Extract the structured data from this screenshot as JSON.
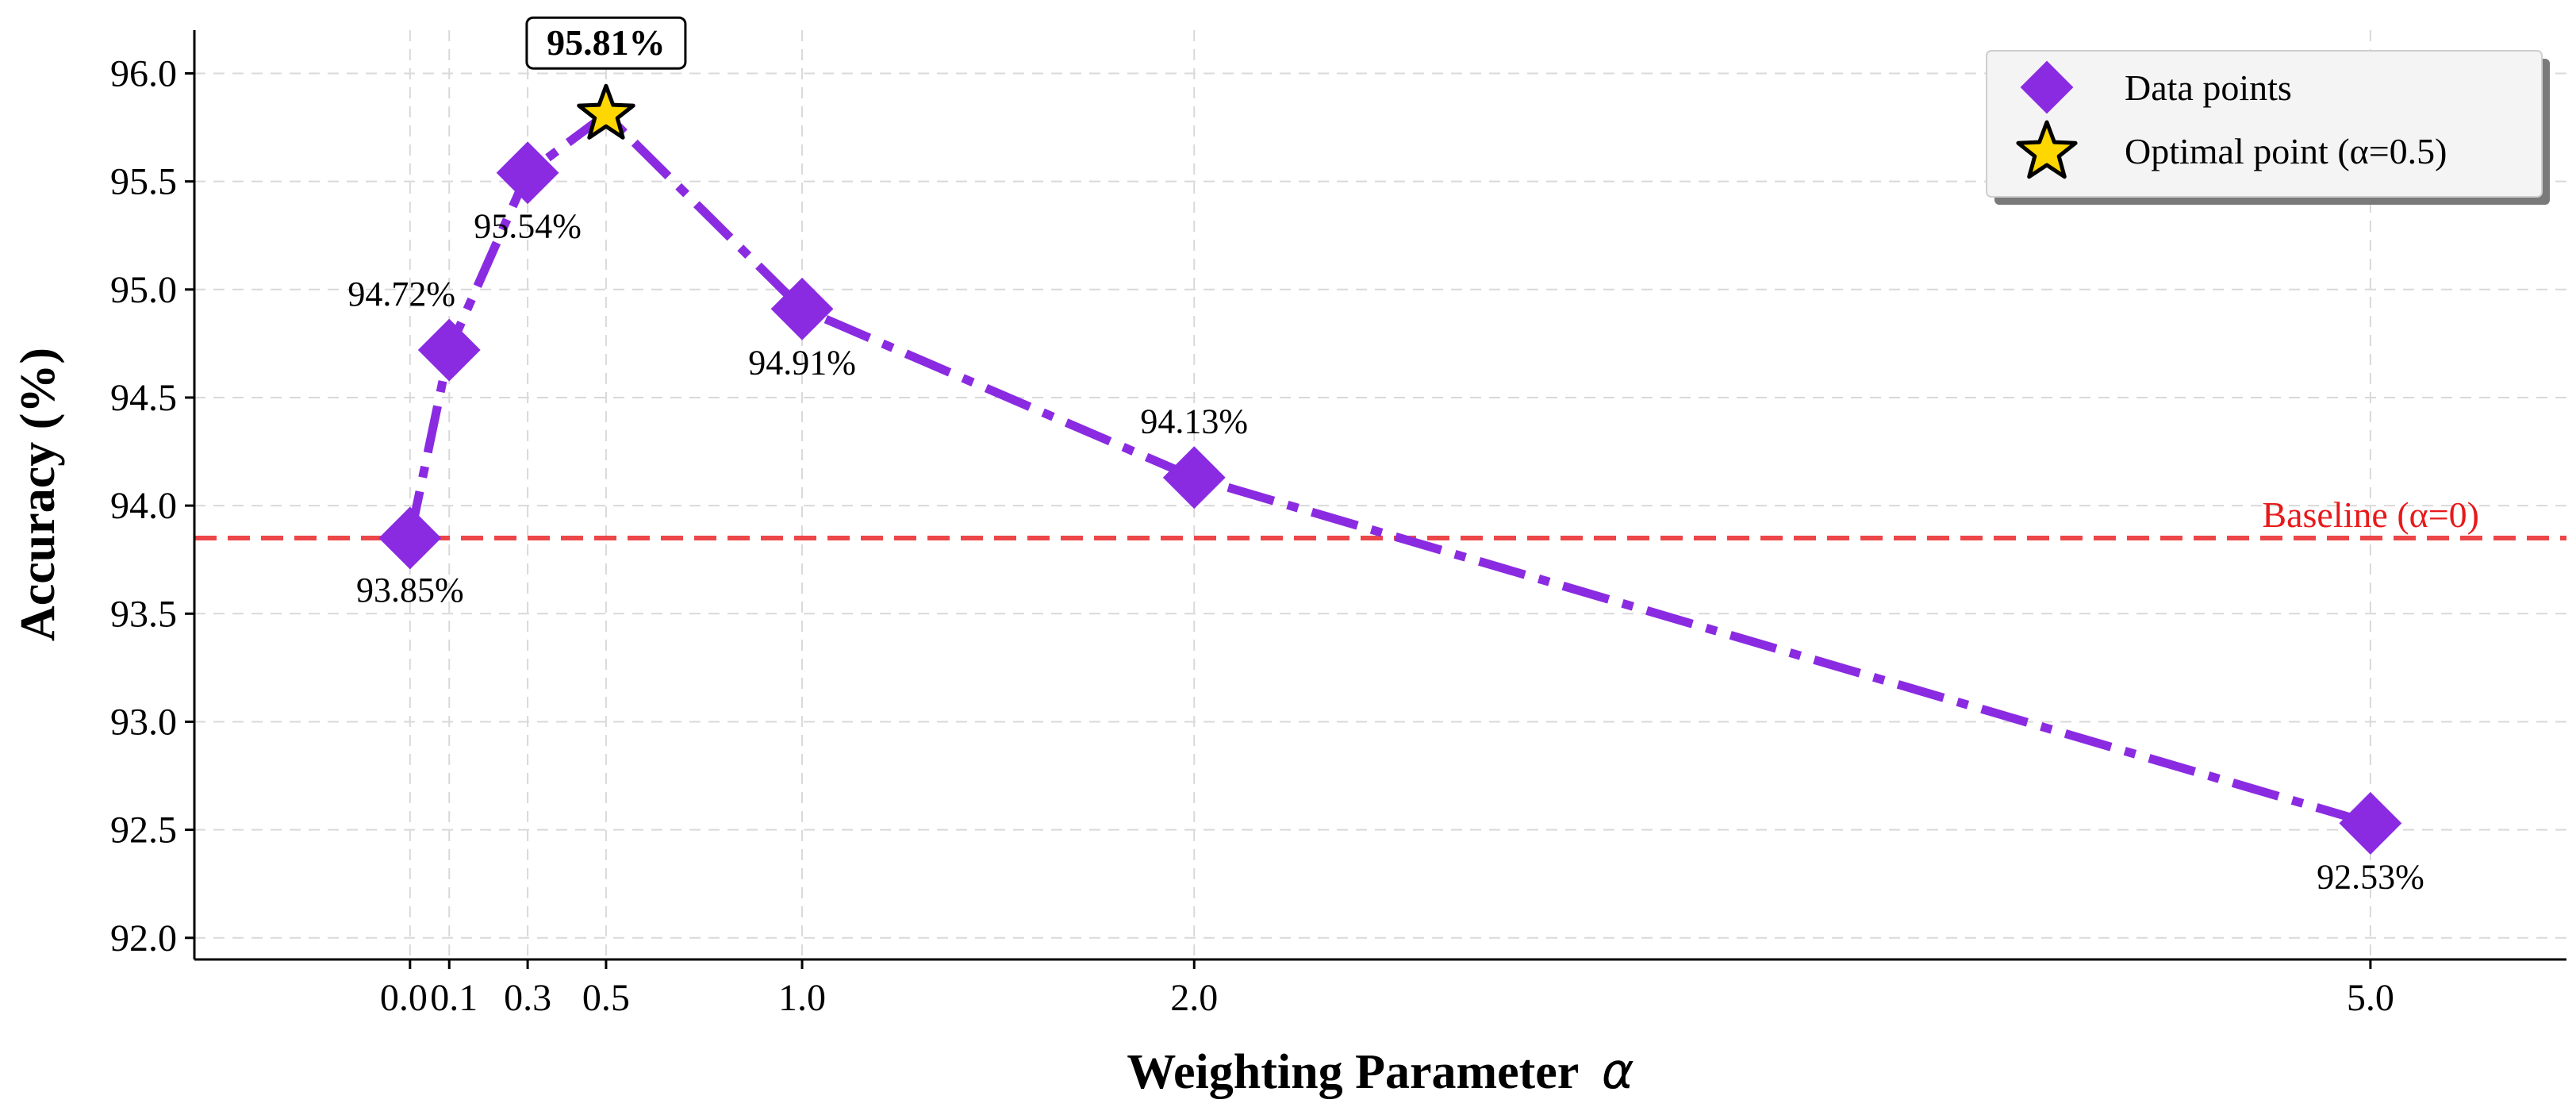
{
  "chart_data": {
    "type": "line",
    "xlabel": "Weighting Parameter",
    "xlabel_symbol": "α",
    "ylabel": "Accuracy (%)",
    "xlim": [
      -0.55,
      5.5
    ],
    "ylim": [
      91.9,
      96.2
    ],
    "grid": true,
    "x_ticks": [
      0.0,
      0.1,
      0.3,
      0.5,
      1.0,
      2.0,
      5.0
    ],
    "x_tick_labels": [
      "0.0",
      "0.1",
      "0.3",
      "0.5",
      "1.0",
      "2.0",
      "5.0"
    ],
    "y_ticks": [
      92.0,
      92.5,
      93.0,
      93.5,
      94.0,
      94.5,
      95.0,
      95.5,
      96.0
    ],
    "y_tick_labels": [
      "92.0",
      "92.5",
      "93.0",
      "93.5",
      "94.0",
      "94.5",
      "95.0",
      "95.5",
      "96.0"
    ],
    "series": [
      {
        "name": "Data points",
        "x": [
          0.0,
          0.1,
          0.3,
          0.5,
          1.0,
          2.0,
          5.0
        ],
        "y": [
          93.85,
          94.72,
          95.54,
          95.81,
          94.91,
          94.13,
          92.53
        ],
        "labels": [
          "93.85%",
          "94.72%",
          "95.54%",
          "95.81%",
          "94.91%",
          "94.13%",
          "92.53%"
        ],
        "color": "#8a2be2"
      }
    ],
    "optimal": {
      "x": 0.5,
      "y": 95.81,
      "label": "95.81%",
      "color": "#ffd700"
    },
    "baseline": {
      "y": 93.85,
      "label": "Baseline (α=0)",
      "color": "#e8191b"
    },
    "legend": {
      "position": "top-right",
      "entries": [
        "Data points",
        "Optimal point (α=0.5)"
      ]
    }
  }
}
